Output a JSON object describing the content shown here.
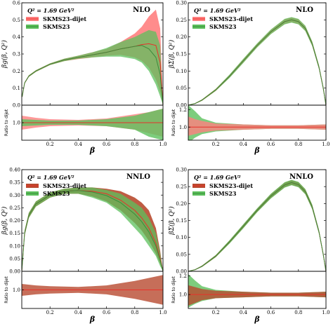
{
  "chart_data": [
    {
      "type": "area",
      "panel": "gluon-nlo",
      "order_label": "NLO",
      "q2_label": "Q² = 1.69 GeV²",
      "ylabel": "βg(β, Q²)",
      "xlabel": "β",
      "ratio_ylabel": "Ratio to dijet",
      "xlim": [
        0,
        1
      ],
      "ylim": [
        0,
        0.6
      ],
      "yticks": [
        "0.0",
        "0.1",
        "0.2",
        "0.3",
        "0.4",
        "0.5",
        "0.6"
      ],
      "ratio_ylim": [
        0.75,
        1.25
      ],
      "ratio_yticks": [
        "1.0"
      ],
      "xticks": [
        "0.2",
        "0.4",
        "0.6",
        "0.8",
        "1.0"
      ],
      "x": [
        0.003,
        0.02,
        0.05,
        0.1,
        0.2,
        0.3,
        0.4,
        0.5,
        0.6,
        0.7,
        0.8,
        0.85,
        0.9,
        0.95,
        0.98,
        1.0
      ],
      "series": [
        {
          "name": "SKMS23-dijet",
          "color": "#e8302a",
          "band": "#ff8080",
          "central": [
            0.05,
            0.13,
            0.17,
            0.2,
            0.24,
            0.265,
            0.28,
            0.295,
            0.31,
            0.33,
            0.345,
            0.355,
            0.36,
            0.35,
            0.25,
            0.0
          ],
          "lower": [
            0.045,
            0.125,
            0.165,
            0.195,
            0.235,
            0.258,
            0.27,
            0.28,
            0.29,
            0.295,
            0.28,
            0.26,
            0.22,
            0.15,
            0.08,
            0.0
          ],
          "upper": [
            0.055,
            0.135,
            0.175,
            0.205,
            0.245,
            0.272,
            0.29,
            0.31,
            0.33,
            0.37,
            0.42,
            0.46,
            0.52,
            0.56,
            0.45,
            0.0
          ]
        },
        {
          "name": "SKMS23",
          "color": "#3c8c3c",
          "band": "#5cc05c",
          "central": [
            0.05,
            0.13,
            0.17,
            0.2,
            0.24,
            0.265,
            0.28,
            0.295,
            0.31,
            0.33,
            0.345,
            0.35,
            0.33,
            0.28,
            0.18,
            0.0
          ],
          "lower": [
            0.045,
            0.125,
            0.165,
            0.195,
            0.235,
            0.258,
            0.272,
            0.28,
            0.285,
            0.285,
            0.27,
            0.25,
            0.2,
            0.12,
            0.05,
            0.0
          ],
          "upper": [
            0.055,
            0.135,
            0.175,
            0.205,
            0.245,
            0.272,
            0.29,
            0.31,
            0.335,
            0.37,
            0.4,
            0.42,
            0.44,
            0.43,
            0.35,
            0.0
          ]
        }
      ],
      "ratio": {
        "x": [
          0.0,
          0.1,
          0.2,
          0.4,
          0.6,
          0.8,
          0.9,
          1.0
        ],
        "bands": [
          {
            "name": "SKMS23-dijet",
            "lower": [
              0.9,
              0.93,
              0.95,
              0.96,
              0.95,
              0.9,
              0.85,
              0.8
            ],
            "upper": [
              1.1,
              1.07,
              1.05,
              1.04,
              1.06,
              1.12,
              1.15,
              1.2
            ]
          },
          {
            "name": "SKMS23",
            "lower": [
              0.95,
              0.96,
              0.97,
              0.97,
              0.95,
              0.9,
              0.8,
              0.75
            ],
            "upper": [
              1.05,
              1.04,
              1.03,
              1.03,
              1.05,
              1.1,
              1.15,
              1.2
            ]
          }
        ]
      }
    },
    {
      "type": "area",
      "panel": "singlet-nlo",
      "order_label": "NLO",
      "q2_label": "Q² = 1.69 GeV²",
      "ylabel": "βΣ(β, Q²)",
      "xlabel": "β",
      "ratio_ylabel": "Ratio to dijet",
      "xlim": [
        0,
        1
      ],
      "ylim": [
        0,
        0.3
      ],
      "yticks": [
        "0.00",
        "0.05",
        "0.10",
        "0.15",
        "0.20",
        "0.25",
        "0.30"
      ],
      "ratio_ylim": [
        0.85,
        1.25
      ],
      "ratio_yticks": [
        "1.0",
        "1.2"
      ],
      "xticks": [
        "0.2",
        "0.4",
        "0.6",
        "0.8",
        "1.0"
      ],
      "x": [
        0.0,
        0.05,
        0.1,
        0.2,
        0.3,
        0.4,
        0.5,
        0.6,
        0.7,
        0.75,
        0.8,
        0.85,
        0.9,
        0.95,
        0.98,
        1.0
      ],
      "series": [
        {
          "name": "SKMS23-dijet",
          "color": "#e8302a",
          "band": "#ff8080",
          "central": [
            0.0,
            0.005,
            0.015,
            0.045,
            0.085,
            0.13,
            0.175,
            0.215,
            0.245,
            0.25,
            0.245,
            0.225,
            0.18,
            0.11,
            0.05,
            0.0
          ],
          "lower": [
            0.0,
            0.004,
            0.013,
            0.042,
            0.081,
            0.125,
            0.17,
            0.209,
            0.238,
            0.243,
            0.238,
            0.218,
            0.174,
            0.105,
            0.046,
            0.0
          ],
          "upper": [
            0.0,
            0.006,
            0.017,
            0.048,
            0.089,
            0.135,
            0.18,
            0.221,
            0.252,
            0.257,
            0.252,
            0.232,
            0.186,
            0.115,
            0.054,
            0.0
          ]
        },
        {
          "name": "SKMS23",
          "color": "#3c8c3c",
          "band": "#5cc05c",
          "central": [
            0.0,
            0.005,
            0.015,
            0.045,
            0.085,
            0.13,
            0.175,
            0.215,
            0.245,
            0.25,
            0.245,
            0.225,
            0.18,
            0.11,
            0.05,
            0.0
          ],
          "lower": [
            0.0,
            0.004,
            0.013,
            0.042,
            0.08,
            0.124,
            0.169,
            0.208,
            0.237,
            0.242,
            0.237,
            0.217,
            0.173,
            0.104,
            0.045,
            0.0
          ],
          "upper": [
            0.0,
            0.006,
            0.017,
            0.048,
            0.09,
            0.136,
            0.181,
            0.222,
            0.253,
            0.258,
            0.253,
            0.233,
            0.187,
            0.116,
            0.055,
            0.0
          ]
        }
      ],
      "ratio": {
        "x": [
          0.0,
          0.05,
          0.1,
          0.2,
          0.4,
          0.6,
          0.8,
          1.0
        ],
        "bands": [
          {
            "name": "SKMS23",
            "lower": [
              0.82,
              0.88,
              0.92,
              0.95,
              0.97,
              0.98,
              0.98,
              0.97
            ],
            "upper": [
              1.25,
              1.18,
              1.1,
              1.05,
              1.03,
              1.02,
              1.02,
              1.03
            ]
          },
          {
            "name": "SKMS23-dijet",
            "lower": [
              0.9,
              0.92,
              0.94,
              0.96,
              0.97,
              0.98,
              0.98,
              0.97
            ],
            "upper": [
              1.12,
              1.09,
              1.07,
              1.04,
              1.03,
              1.02,
              1.02,
              1.03
            ]
          }
        ]
      }
    },
    {
      "type": "area",
      "panel": "gluon-nnlo",
      "order_label": "NNLO",
      "q2_label": "Q² = 1.69 GeV²",
      "ylabel": "βg(β, Q²)",
      "xlabel": "β",
      "ratio_ylabel": "Ratio to dijet",
      "xlim": [
        0,
        1
      ],
      "ylim": [
        0,
        0.4
      ],
      "yticks": [
        "0.00",
        "0.05",
        "0.10",
        "0.15",
        "0.20",
        "0.25",
        "0.30",
        "0.35",
        "0.40"
      ],
      "ratio_ylim": [
        0.75,
        1.25
      ],
      "ratio_yticks": [
        "1.0"
      ],
      "xticks": [
        "0.2",
        "0.4",
        "0.6",
        "0.8",
        "1.0"
      ],
      "x": [
        0.0,
        0.02,
        0.05,
        0.1,
        0.2,
        0.3,
        0.4,
        0.5,
        0.6,
        0.7,
        0.8,
        0.85,
        0.9,
        0.95,
        0.98,
        1.0
      ],
      "series": [
        {
          "name": "SKMS23-dijet",
          "color": "#e8302a",
          "band": "#b84a2f",
          "central": [
            0.0,
            0.15,
            0.22,
            0.265,
            0.3,
            0.315,
            0.318,
            0.315,
            0.305,
            0.28,
            0.24,
            0.21,
            0.17,
            0.11,
            0.05,
            0.0
          ],
          "lower": [
            0.0,
            0.14,
            0.21,
            0.255,
            0.29,
            0.305,
            0.305,
            0.295,
            0.275,
            0.24,
            0.19,
            0.16,
            0.12,
            0.07,
            0.03,
            0.0
          ],
          "upper": [
            0.0,
            0.16,
            0.23,
            0.275,
            0.31,
            0.325,
            0.33,
            0.33,
            0.325,
            0.315,
            0.29,
            0.27,
            0.24,
            0.17,
            0.08,
            0.0
          ]
        },
        {
          "name": "SKMS23",
          "color": "#3c8c3c",
          "band": "#5cc05c",
          "central": [
            0.0,
            0.15,
            0.22,
            0.265,
            0.3,
            0.315,
            0.318,
            0.312,
            0.298,
            0.27,
            0.225,
            0.195,
            0.155,
            0.1,
            0.045,
            0.0
          ],
          "lower": [
            0.0,
            0.14,
            0.21,
            0.255,
            0.29,
            0.305,
            0.305,
            0.29,
            0.27,
            0.23,
            0.17,
            0.14,
            0.1,
            0.06,
            0.02,
            0.0
          ],
          "upper": [
            0.0,
            0.16,
            0.23,
            0.275,
            0.31,
            0.325,
            0.33,
            0.33,
            0.32,
            0.305,
            0.27,
            0.25,
            0.21,
            0.15,
            0.07,
            0.0
          ]
        }
      ],
      "ratio": {
        "x": [
          0.0,
          0.1,
          0.2,
          0.4,
          0.6,
          0.8,
          0.9,
          1.0
        ],
        "bands": [
          {
            "name": "SKMS23-dijet",
            "lower": [
              0.92,
              0.94,
              0.95,
              0.96,
              0.94,
              0.88,
              0.84,
              0.8
            ],
            "upper": [
              1.08,
              1.06,
              1.05,
              1.04,
              1.06,
              1.12,
              1.16,
              1.2
            ]
          }
        ]
      }
    },
    {
      "type": "area",
      "panel": "singlet-nnlo",
      "order_label": "NNLO",
      "q2_label": "Q² = 1.69 GeV²",
      "ylabel": "βΣ(β, Q²)",
      "xlabel": "β",
      "ratio_ylabel": "Ratio to dijet",
      "xlim": [
        0,
        1
      ],
      "ylim": [
        0,
        0.3
      ],
      "yticks": [
        "0.00",
        "0.05",
        "0.10",
        "0.15",
        "0.20",
        "0.25",
        "0.30"
      ],
      "ratio_ylim": [
        0.85,
        1.25
      ],
      "ratio_yticks": [
        "1.0",
        "1.2"
      ],
      "xticks": [
        "0.2",
        "0.4",
        "0.6",
        "0.8",
        "1.0"
      ],
      "x": [
        0.0,
        0.05,
        0.1,
        0.2,
        0.3,
        0.4,
        0.5,
        0.6,
        0.7,
        0.75,
        0.8,
        0.85,
        0.9,
        0.95,
        0.98,
        1.0
      ],
      "series": [
        {
          "name": "SKMS23-dijet",
          "color": "#e8302a",
          "band": "#b84a2f",
          "central": [
            0.0,
            0.005,
            0.015,
            0.045,
            0.087,
            0.133,
            0.18,
            0.222,
            0.255,
            0.262,
            0.256,
            0.235,
            0.19,
            0.115,
            0.05,
            0.0
          ],
          "lower": [
            0.0,
            0.004,
            0.013,
            0.042,
            0.083,
            0.128,
            0.175,
            0.216,
            0.248,
            0.255,
            0.249,
            0.228,
            0.184,
            0.11,
            0.046,
            0.0
          ],
          "upper": [
            0.0,
            0.006,
            0.017,
            0.048,
            0.091,
            0.138,
            0.185,
            0.228,
            0.262,
            0.269,
            0.263,
            0.242,
            0.196,
            0.12,
            0.054,
            0.0
          ]
        },
        {
          "name": "SKMS23",
          "color": "#3c8c3c",
          "band": "#5cc05c",
          "central": [
            0.0,
            0.005,
            0.015,
            0.045,
            0.087,
            0.133,
            0.18,
            0.222,
            0.255,
            0.262,
            0.256,
            0.235,
            0.19,
            0.115,
            0.05,
            0.0
          ],
          "lower": [
            0.0,
            0.004,
            0.013,
            0.042,
            0.082,
            0.127,
            0.174,
            0.215,
            0.247,
            0.254,
            0.248,
            0.227,
            0.183,
            0.109,
            0.045,
            0.0
          ],
          "upper": [
            0.0,
            0.006,
            0.017,
            0.048,
            0.092,
            0.139,
            0.186,
            0.229,
            0.263,
            0.27,
            0.264,
            0.243,
            0.197,
            0.121,
            0.055,
            0.0
          ]
        }
      ],
      "ratio": {
        "x": [
          0.0,
          0.05,
          0.1,
          0.2,
          0.4,
          0.6,
          0.8,
          1.0
        ],
        "bands": [
          {
            "name": "SKMS23",
            "lower": [
              0.86,
              0.9,
              0.93,
              0.96,
              0.97,
              0.98,
              0.98,
              0.97
            ],
            "upper": [
              1.22,
              1.15,
              1.09,
              1.05,
              1.03,
              1.02,
              1.02,
              1.03
            ]
          },
          {
            "name": "SKMS23-dijet",
            "lower": [
              0.88,
              0.91,
              0.94,
              0.96,
              0.97,
              0.98,
              0.98,
              0.97
            ],
            "upper": [
              1.1,
              1.08,
              1.06,
              1.04,
              1.03,
              1.02,
              1.02,
              1.03
            ]
          }
        ]
      }
    }
  ]
}
